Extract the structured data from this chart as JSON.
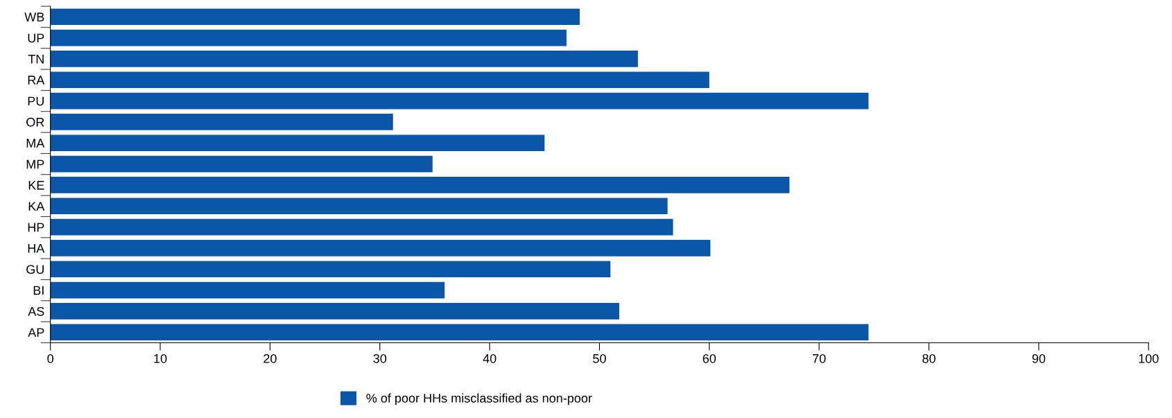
{
  "chart_data": {
    "type": "bar",
    "orientation": "horizontal",
    "categories": [
      "WB",
      "UP",
      "TN",
      "RA",
      "PU",
      "OR",
      "MA",
      "MP",
      "KE",
      "KA",
      "HP",
      "HA",
      "GU",
      "BI",
      "AS",
      "AP"
    ],
    "series": [
      {
        "name": "% of poor HHs misclassified as non-poor",
        "color": "#0a56a8",
        "values": [
          48.2,
          47,
          53.5,
          60,
          74.5,
          31.2,
          45,
          34.8,
          67.3,
          56.2,
          56.7,
          60.1,
          51,
          35.9,
          51.8,
          74.5
        ]
      }
    ],
    "xlim": [
      0,
      100
    ],
    "xticks": [
      0,
      10,
      20,
      30,
      40,
      50,
      60,
      70,
      80,
      90,
      100
    ],
    "grid": false,
    "legend": "bottom"
  }
}
